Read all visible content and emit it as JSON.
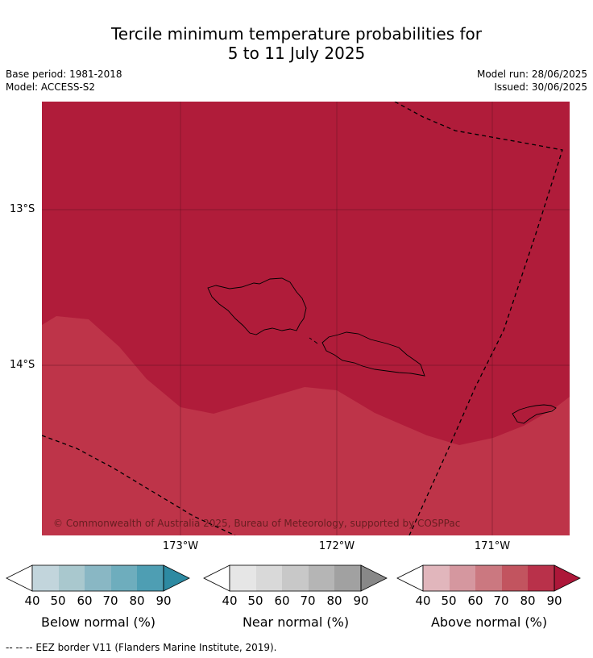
{
  "title_line1": "Tercile minimum temperature probabilities for",
  "title_line2": "5 to 11 July 2025",
  "meta_left_line1": "Base period: 1981-2018",
  "meta_left_line2": "Model: ACCESS-S2",
  "meta_right_line1": "Model run: 28/06/2025",
  "meta_right_line2": "Issued: 30/06/2025",
  "map": {
    "lat_labels": [
      "13°S",
      "14°S"
    ],
    "lon_labels": [
      "173°W",
      "172°W",
      "171°W"
    ],
    "copyright": "© Commonwealth of Australia 2025, Bureau of Meteorology, supported by COSPPac",
    "colors": {
      "above_90": "#b01c3a",
      "above_80": "#be3449",
      "coast": "#000000",
      "grid": "#5a1020",
      "eez": "#000000"
    }
  },
  "legends": [
    {
      "label": "Below normal (%)",
      "ticks": [
        "40",
        "50",
        "60",
        "70",
        "80",
        "90"
      ],
      "colors": [
        "#c2d5dc",
        "#a9c8ce",
        "#89b7c4",
        "#6eadbd",
        "#4e9eb3",
        "#2d8aa2"
      ]
    },
    {
      "label": "Near normal (%)",
      "ticks": [
        "40",
        "50",
        "60",
        "70",
        "80",
        "90"
      ],
      "colors": [
        "#e6e6e6",
        "#d9d9d9",
        "#c8c8c8",
        "#b5b5b5",
        "#a1a1a1",
        "#888888"
      ]
    },
    {
      "label": "Above normal (%)",
      "ticks": [
        "40",
        "50",
        "60",
        "70",
        "80",
        "90"
      ],
      "colors": [
        "#e1b6bc",
        "#d5979f",
        "#cb7880",
        "#c2545f",
        "#b9314a",
        "#ad1739"
      ]
    }
  ],
  "footnote": "--  --  -- EEZ border V11 (Flanders Marine Institute, 2019)."
}
